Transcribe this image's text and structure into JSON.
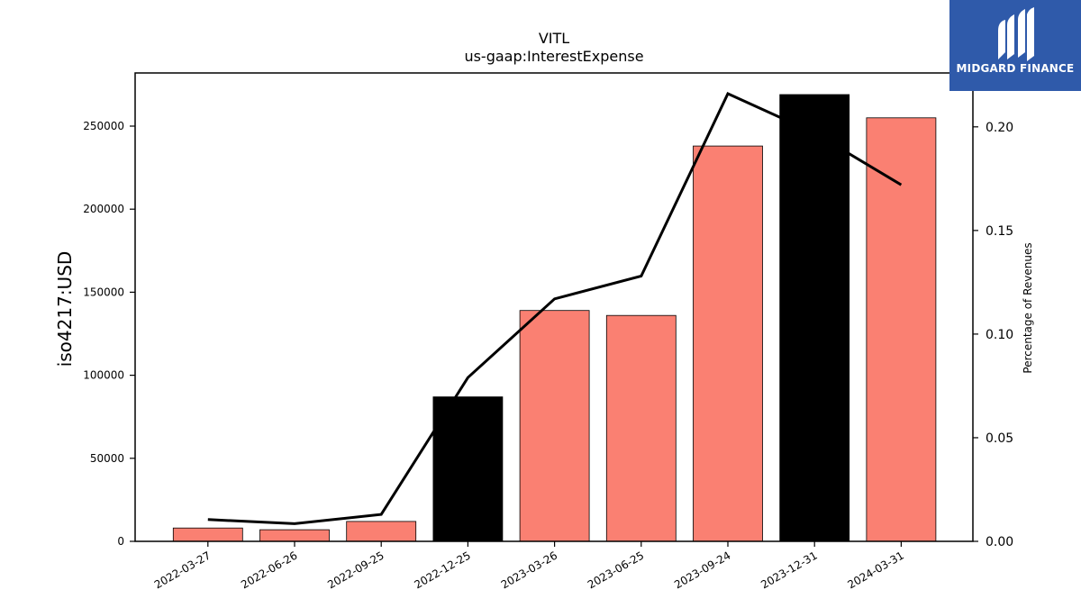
{
  "chart_data": {
    "type": "bar",
    "title": "VITL",
    "subtitle": "us-gaap:InterestExpense",
    "ylabel": "iso4217:USD",
    "y2label": "Percentage of Revenues",
    "categories": [
      "2022-03-27",
      "2022-06-26",
      "2022-09-25",
      "2022-12-25",
      "2023-03-26",
      "2023-06-25",
      "2023-09-24",
      "2023-12-31",
      "2024-03-31"
    ],
    "bar_values": [
      8000,
      7000,
      12000,
      87000,
      139000,
      136000,
      238000,
      269000,
      255000
    ],
    "bar_colors": [
      "#fa8072",
      "#fa8072",
      "#fa8072",
      "#000000",
      "#fa8072",
      "#fa8072",
      "#fa8072",
      "#000000",
      "#fa8072"
    ],
    "line_values": [
      0.0105,
      0.0085,
      0.013,
      0.079,
      0.117,
      0.128,
      0.216,
      0.197,
      0.172
    ],
    "line_color": "#000000",
    "ylim": [
      0,
      282000
    ],
    "y2lim": [
      0,
      0.226
    ],
    "yticks": [
      0,
      50000,
      100000,
      150000,
      200000,
      250000
    ],
    "y2ticks": [
      "0.00",
      "0.05",
      "0.10",
      "0.15",
      "0.20"
    ],
    "grid": false,
    "legend": "none"
  },
  "logo": {
    "text": "MIDGARD FINANCE",
    "background": "#2f5aaa"
  }
}
